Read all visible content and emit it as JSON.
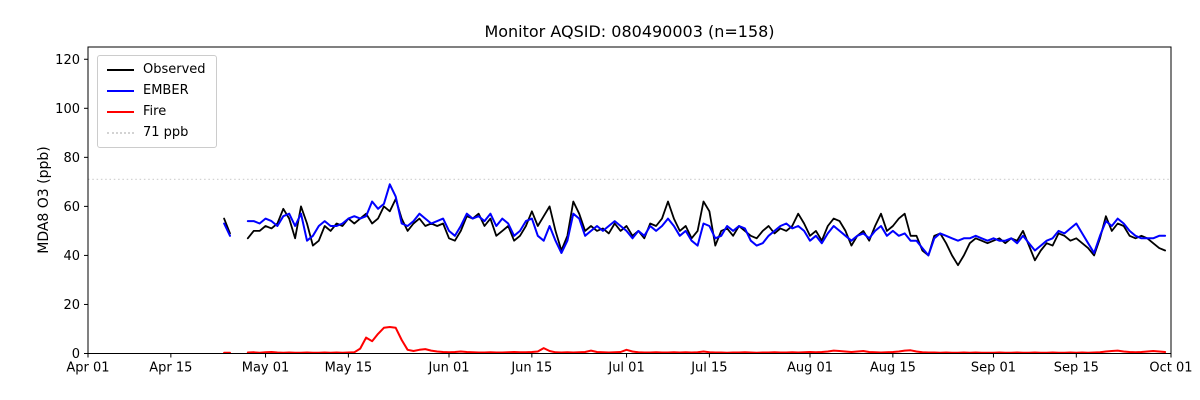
{
  "chart_data": {
    "type": "line",
    "title": "Monitor AQSID: 080490003 (n=158)",
    "xlabel": "",
    "ylabel": "MDA8 O3 (ppb)",
    "ylim": [
      0,
      125
    ],
    "yticks": [
      0,
      20,
      40,
      60,
      80,
      100,
      120
    ],
    "grid": false,
    "legend_position": "upper left",
    "x_axis": {
      "tick_labels": [
        "Apr 01",
        "Apr 15",
        "May 01",
        "May 15",
        "Jun 01",
        "Jun 15",
        "Jul 01",
        "Jul 15",
        "Aug 01",
        "Aug 15",
        "Sep 01",
        "Sep 15",
        "Oct 01"
      ],
      "tick_days": [
        0,
        14,
        30,
        44,
        61,
        75,
        91,
        105,
        122,
        136,
        153,
        167,
        183
      ],
      "range_days": [
        0,
        183
      ],
      "data_start_day": 23,
      "data_start_date": "Apr 24",
      "data_end_date": "Sep 30",
      "frequency": "daily",
      "missing_dates": [
        "Apr 26",
        "Apr 27"
      ]
    },
    "threshold": {
      "label": "71 ppb",
      "value": 71,
      "color": "#d3d3d3",
      "style": "dotted"
    },
    "series": [
      {
        "name": "Observed",
        "color": "#000000",
        "width": 1.8,
        "values": [
          55,
          49,
          null,
          null,
          47,
          50,
          50,
          52,
          51,
          53,
          59,
          55,
          47,
          60,
          53,
          44,
          46,
          52,
          50,
          53,
          52,
          55,
          53,
          55,
          57,
          53,
          55,
          60,
          58,
          63,
          55,
          50,
          53,
          55,
          52,
          53,
          52,
          53,
          47,
          46,
          50,
          56,
          55,
          57,
          52,
          55,
          48,
          50,
          52,
          46,
          48,
          52,
          58,
          52,
          56,
          60,
          50,
          42,
          48,
          62,
          57,
          50,
          52,
          50,
          51,
          49,
          53,
          50,
          52,
          48,
          50,
          47,
          53,
          52,
          55,
          62,
          55,
          50,
          52,
          47,
          50,
          62,
          58,
          44,
          50,
          51,
          48,
          52,
          50,
          48,
          47,
          50,
          52,
          49,
          51,
          50,
          52,
          57,
          53,
          48,
          50,
          46,
          52,
          55,
          54,
          50,
          44,
          48,
          50,
          46,
          52,
          57,
          50,
          52,
          55,
          57,
          48,
          48,
          42,
          40,
          48,
          49,
          45,
          40,
          36,
          40,
          45,
          47,
          46,
          45,
          46,
          47,
          45,
          47,
          46,
          50,
          44,
          38,
          42,
          45,
          44,
          49,
          48,
          46,
          47,
          45,
          43,
          40,
          47,
          56,
          50,
          53,
          52,
          48,
          47,
          48,
          47,
          45,
          43,
          42
        ]
      },
      {
        "name": "EMBER",
        "color": "#0000ff",
        "width": 2,
        "values": [
          53,
          48,
          null,
          null,
          54,
          54,
          53,
          55,
          54,
          52,
          56,
          57,
          52,
          57,
          46,
          48,
          52,
          54,
          52,
          52,
          53,
          55,
          56,
          55,
          56,
          62,
          59,
          61,
          69,
          64,
          53,
          52,
          54,
          57,
          55,
          53,
          54,
          55,
          50,
          48,
          52,
          57,
          55,
          56,
          54,
          57,
          52,
          55,
          53,
          48,
          50,
          54,
          55,
          48,
          46,
          52,
          46,
          41,
          46,
          57,
          55,
          48,
          50,
          52,
          50,
          52,
          54,
          52,
          50,
          47,
          50,
          48,
          52,
          50,
          52,
          55,
          52,
          48,
          50,
          46,
          44,
          53,
          52,
          47,
          48,
          52,
          50,
          52,
          51,
          46,
          44,
          45,
          48,
          50,
          52,
          53,
          51,
          52,
          50,
          46,
          48,
          45,
          49,
          52,
          50,
          48,
          46,
          48,
          49,
          47,
          50,
          52,
          48,
          50,
          48,
          49,
          46,
          46,
          43,
          40,
          47,
          49,
          48,
          47,
          46,
          47,
          47,
          48,
          47,
          46,
          47,
          46,
          46,
          47,
          45,
          48,
          45,
          42,
          44,
          46,
          47,
          50,
          49,
          51,
          53,
          49,
          45,
          41,
          48,
          54,
          52,
          55,
          53,
          50,
          48,
          47,
          47,
          47,
          48,
          48
        ]
      },
      {
        "name": "Fire",
        "color": "#ff0000",
        "width": 2,
        "values": [
          0.3,
          0.3,
          null,
          null,
          0.4,
          0.5,
          0.3,
          0.5,
          0.6,
          0.4,
          0.3,
          0.4,
          0.3,
          0.3,
          0.4,
          0.3,
          0.3,
          0.4,
          0.3,
          0.4,
          0.3,
          0.4,
          0.5,
          2,
          6.5,
          5,
          8,
          10.5,
          10.8,
          10.5,
          5.5,
          1.5,
          1,
          1.5,
          1.8,
          1.2,
          0.8,
          0.6,
          0.5,
          0.6,
          0.8,
          0.6,
          0.5,
          0.4,
          0.4,
          0.5,
          0.4,
          0.4,
          0.5,
          0.6,
          0.5,
          0.5,
          0.6,
          0.8,
          2.2,
          1,
          0.5,
          0.4,
          0.5,
          0.4,
          0.5,
          0.6,
          1.2,
          0.6,
          0.5,
          0.4,
          0.5,
          0.6,
          1.5,
          0.8,
          0.5,
          0.4,
          0.4,
          0.5,
          0.4,
          0.4,
          0.5,
          0.4,
          0.5,
          0.4,
          0.5,
          0.8,
          0.5,
          0.4,
          0.4,
          0.3,
          0.4,
          0.4,
          0.5,
          0.4,
          0.3,
          0.4,
          0.4,
          0.5,
          0.4,
          0.4,
          0.5,
          0.4,
          0.5,
          0.6,
          0.5,
          0.6,
          0.8,
          1.2,
          1,
          0.8,
          0.6,
          0.8,
          1,
          0.6,
          0.5,
          0.4,
          0.5,
          0.6,
          0.8,
          1.2,
          1.3,
          0.8,
          0.5,
          0.4,
          0.4,
          0.3,
          0.4,
          0.3,
          0.3,
          0.4,
          0.3,
          0.4,
          0.3,
          0.3,
          0.3,
          0.4,
          0.3,
          0.3,
          0.4,
          0.3,
          0.3,
          0.4,
          0.3,
          0.3,
          0.4,
          0.3,
          0.3,
          0.4,
          0.3,
          0.4,
          0.3,
          0.4,
          0.5,
          0.8,
          1,
          1.2,
          0.8,
          0.6,
          0.5,
          0.6,
          0.8,
          1,
          0.8,
          0.6
        ]
      }
    ]
  }
}
